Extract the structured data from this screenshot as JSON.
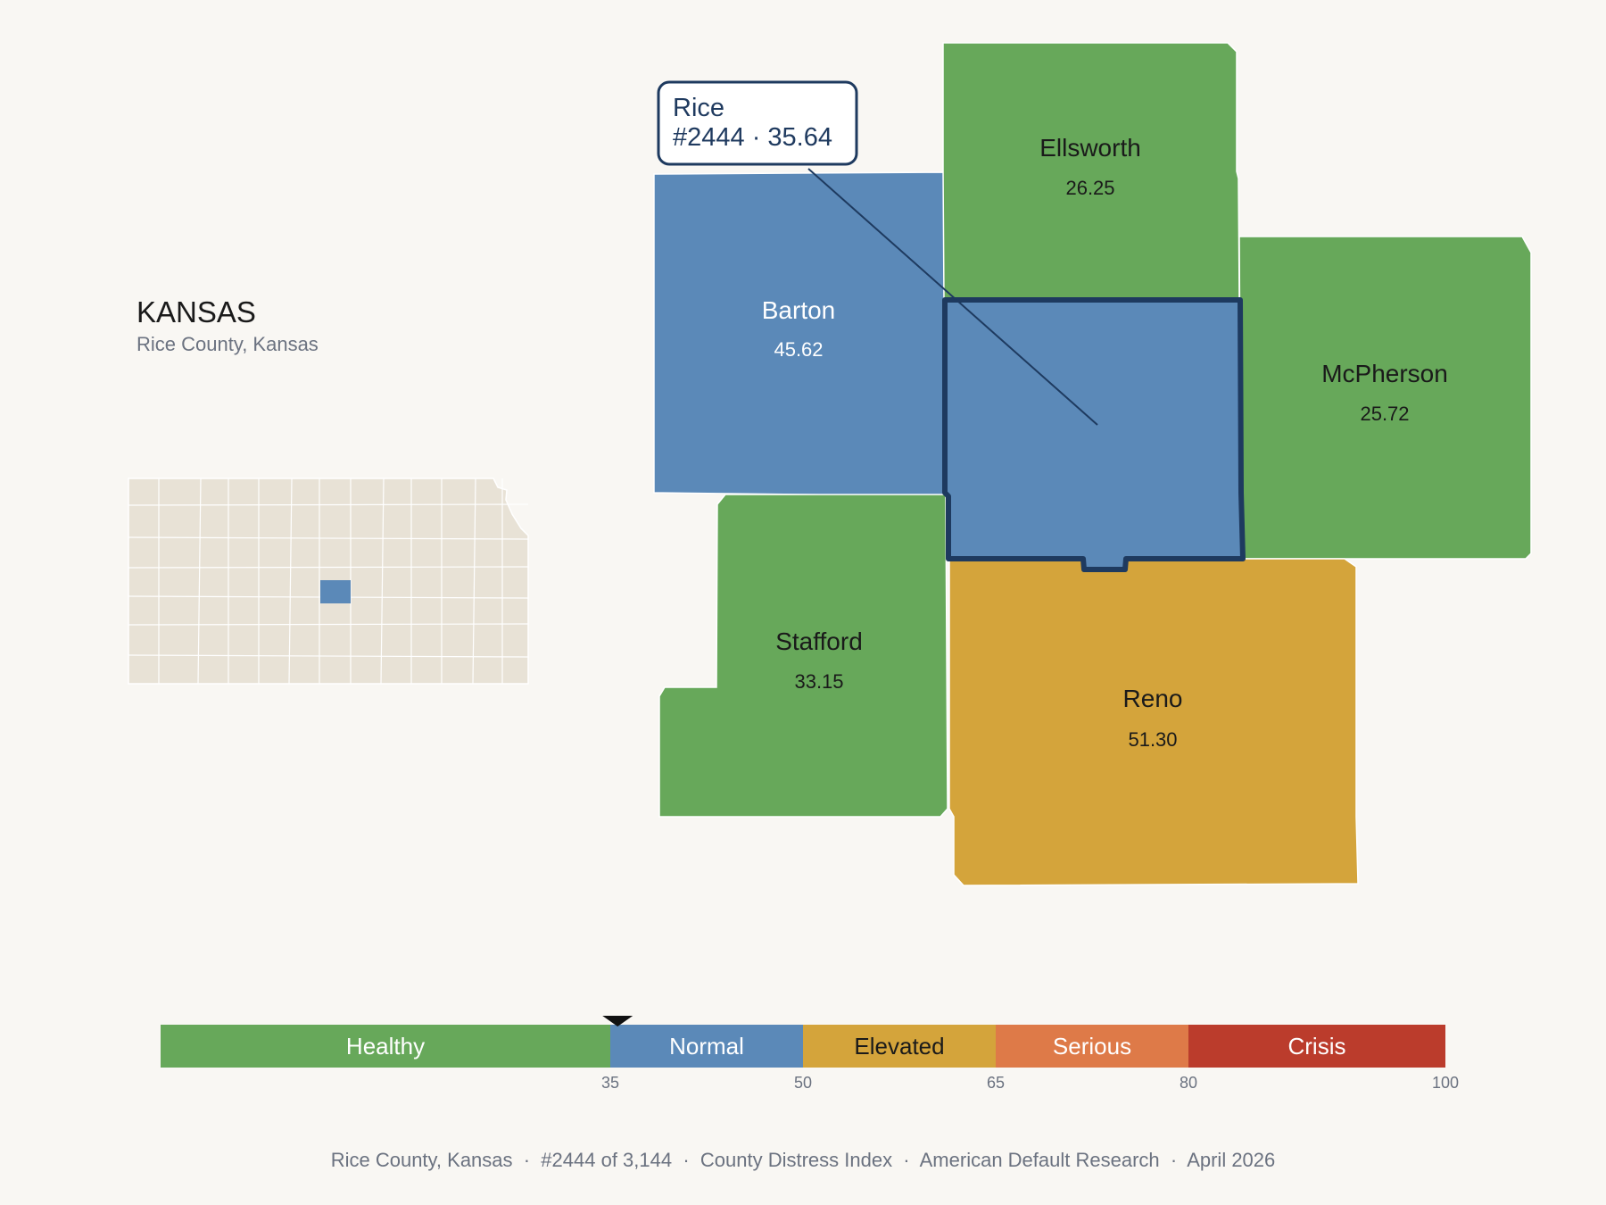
{
  "header": {
    "state": "KANSAS",
    "subtitle": "Rice County, Kansas"
  },
  "colors": {
    "healthy": "#67a85a",
    "normal": "#5b89b8",
    "elevated": "#d4a43b",
    "serious": "#de7a48",
    "crisis": "#bb3c2c",
    "inset_fill": "#e8e2d6",
    "highlight_stroke": "#1e3a5f"
  },
  "callout": {
    "county": "Rice",
    "detail": "#2444 · 35.64"
  },
  "counties": [
    {
      "id": "barton",
      "name": "Barton",
      "value": "45.62",
      "category": "normal"
    },
    {
      "id": "ellsworth",
      "name": "Ellsworth",
      "value": "26.25",
      "category": "healthy"
    },
    {
      "id": "mcpherson",
      "name": "McPherson",
      "value": "25.72",
      "category": "healthy"
    },
    {
      "id": "stafford",
      "name": "Stafford",
      "value": "33.15",
      "category": "healthy"
    },
    {
      "id": "reno",
      "name": "Reno",
      "value": "51.30",
      "category": "elevated"
    },
    {
      "id": "rice",
      "name": "Rice",
      "value": "35.64",
      "category": "normal",
      "highlighted": true
    }
  ],
  "scale": {
    "min": 0,
    "max": 100,
    "marker_value": 35.64,
    "bands": [
      {
        "label": "Healthy",
        "from": 0,
        "to": 35,
        "category": "healthy",
        "text_color": "#ffffff"
      },
      {
        "label": "Normal",
        "from": 35,
        "to": 50,
        "category": "normal",
        "text_color": "#ffffff"
      },
      {
        "label": "Elevated",
        "from": 50,
        "to": 65,
        "category": "elevated",
        "text_color": "#1a1a1a"
      },
      {
        "label": "Serious",
        "from": 65,
        "to": 80,
        "category": "serious",
        "text_color": "#ffffff"
      },
      {
        "label": "Crisis",
        "from": 80,
        "to": 100,
        "category": "crisis",
        "text_color": "#ffffff"
      }
    ],
    "ticks": [
      "35",
      "50",
      "65",
      "80",
      "100"
    ]
  },
  "footer": {
    "text": "Rice County, Kansas  ·  #2444 of 3,144  ·  County Distress Index  ·  American Default Research  ·  April 2026"
  }
}
